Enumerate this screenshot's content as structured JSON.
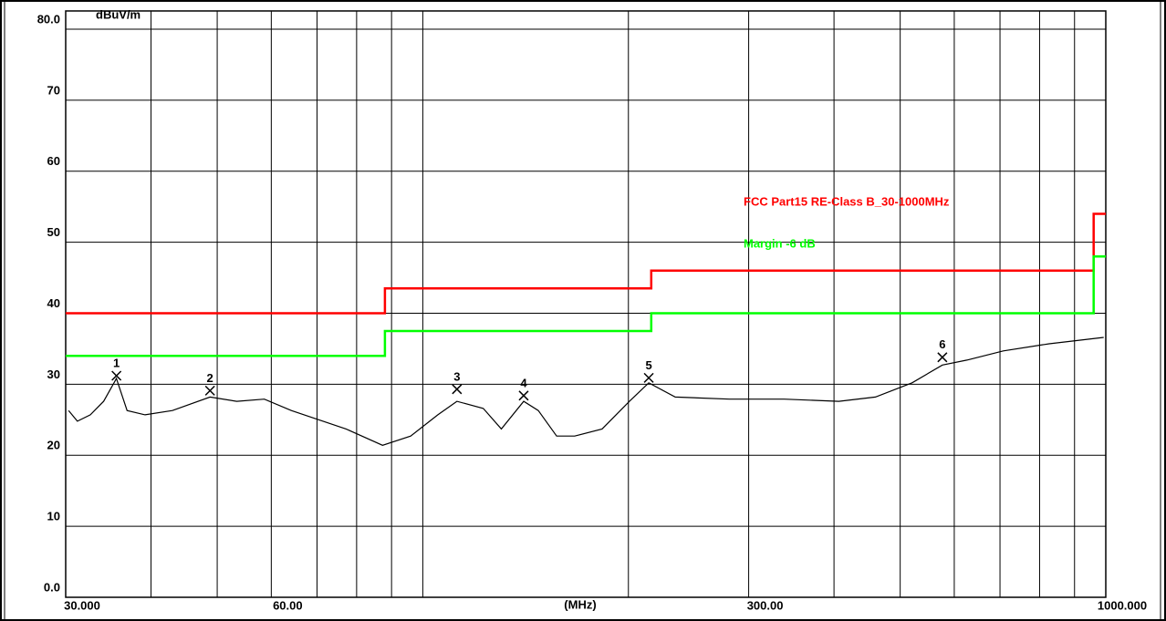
{
  "chart_data": {
    "type": "line",
    "ylabel": "dBuV/m",
    "xlabel": "(MHz)",
    "log_x": true,
    "grid": true,
    "xlim": [
      30,
      1000
    ],
    "ylim": [
      0,
      80
    ],
    "xticks": [
      {
        "value": 30,
        "label": "30.000"
      },
      {
        "value": 60,
        "label": "60.00"
      },
      {
        "value": 300,
        "label": "300.00"
      },
      {
        "value": 1000,
        "label": "1000.000"
      }
    ],
    "xgrid": [
      40,
      50,
      70,
      80,
      90,
      100,
      200,
      400,
      500,
      600,
      700,
      800,
      900
    ],
    "yticks": [
      {
        "value": 0,
        "label": "0.0"
      },
      10,
      20,
      30,
      40,
      50,
      60,
      70,
      {
        "value": 80,
        "label": "80.0"
      }
    ],
    "series": [
      {
        "name": "FCC Part15 RE-Class B_30-1000MHz",
        "color": "#ff0000",
        "step": true,
        "x": [
          30,
          88,
          88,
          216,
          216,
          960,
          960,
          1000
        ],
        "values": [
          40,
          40,
          43.5,
          43.5,
          46,
          46,
          54,
          54
        ]
      },
      {
        "name": "Margin -6 dB",
        "color": "#00ff00",
        "step": true,
        "x": [
          30,
          88,
          88,
          216,
          216,
          960,
          960,
          1000
        ],
        "values": [
          34,
          34,
          37.5,
          37.5,
          40,
          40,
          48,
          48
        ]
      },
      {
        "color": "#000000",
        "x": [
          30.3,
          31.2,
          32.6,
          34.1,
          35.6,
          36.9,
          39.2,
          43.0,
          48.8,
          53.4,
          58.6,
          64.2,
          70.4,
          77.2,
          87.3,
          96.0,
          105.2,
          112.2,
          122.6,
          130.3,
          140.5,
          147.6,
          157.0,
          166.9,
          183.0,
          200.7,
          214.2,
          234.2,
          281.2,
          338.2,
          406.6,
          460.0,
          520.4,
          576.4,
          626,
          708,
          826,
          993
        ],
        "values": [
          26.3,
          24.8,
          25.7,
          27.6,
          30.8,
          26.3,
          25.7,
          26.3,
          28.2,
          27.6,
          27.9,
          26.3,
          25.0,
          23.7,
          21.4,
          22.7,
          25.7,
          27.6,
          26.6,
          23.7,
          27.6,
          26.3,
          22.7,
          22.7,
          23.7,
          27.6,
          30.2,
          28.2,
          27.9,
          27.9,
          27.6,
          28.2,
          30.2,
          32.7,
          33.4,
          34.7,
          35.7,
          36.6
        ]
      }
    ],
    "markers": {
      "labels": [
        "1",
        "2",
        "3",
        "4",
        "5",
        "6"
      ],
      "x": [
        35.6,
        48.8,
        112.2,
        140.5,
        214.2,
        576.4
      ],
      "values": [
        31.2,
        29.1,
        29.3,
        28.4,
        30.9,
        33.8
      ]
    }
  }
}
